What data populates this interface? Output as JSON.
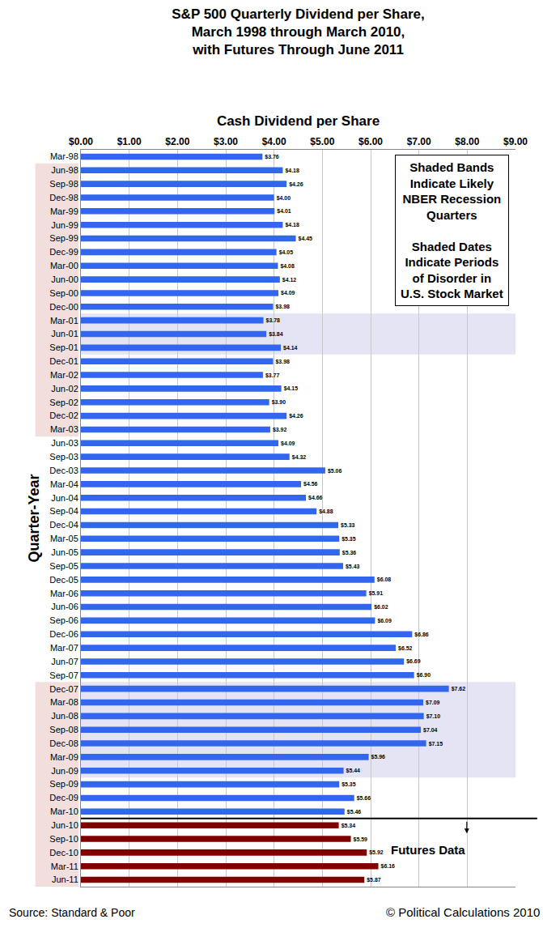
{
  "chart_data": {
    "type": "bar",
    "orientation": "horizontal",
    "title": "S&P 500 Quarterly Dividend per Share, March 1998 through March 2010, with Futures Through June 2011",
    "xlabel": "Cash Dividend per Share",
    "ylabel": "Quarter-Year",
    "categories": [
      "Mar-98",
      "Jun-98",
      "Sep-98",
      "Dec-98",
      "Mar-99",
      "Jun-99",
      "Sep-99",
      "Dec-99",
      "Mar-00",
      "Jun-00",
      "Sep-00",
      "Dec-00",
      "Mar-01",
      "Jun-01",
      "Sep-01",
      "Dec-01",
      "Mar-02",
      "Jun-02",
      "Sep-02",
      "Dec-02",
      "Mar-03",
      "Jun-03",
      "Sep-03",
      "Dec-03",
      "Mar-04",
      "Jun-04",
      "Sep-04",
      "Dec-04",
      "Mar-05",
      "Jun-05",
      "Sep-05",
      "Dec-05",
      "Mar-06",
      "Jun-06",
      "Sep-06",
      "Dec-06",
      "Mar-07",
      "Jun-07",
      "Sep-07",
      "Dec-07",
      "Mar-08",
      "Jun-08",
      "Sep-08",
      "Dec-08",
      "Mar-09",
      "Jun-09",
      "Sep-09",
      "Dec-09",
      "Mar-10",
      "Jun-10",
      "Sep-10",
      "Dec-10",
      "Mar-11",
      "Jun-11"
    ],
    "values": [
      3.76,
      4.18,
      4.26,
      4.0,
      4.01,
      4.18,
      4.45,
      4.05,
      4.08,
      4.12,
      4.09,
      3.98,
      3.78,
      3.84,
      4.14,
      3.98,
      3.77,
      4.15,
      3.9,
      4.26,
      3.92,
      4.09,
      4.32,
      5.06,
      4.56,
      4.66,
      4.88,
      5.33,
      5.35,
      5.36,
      5.43,
      6.08,
      5.91,
      6.02,
      6.09,
      6.86,
      6.52,
      6.69,
      6.9,
      7.62,
      7.09,
      7.1,
      7.04,
      7.15,
      5.96,
      5.44,
      5.35,
      5.66,
      5.46,
      5.34,
      5.59,
      5.92,
      6.16,
      5.87
    ],
    "value_labels": [
      "$3.76",
      "$4.18",
      "$4.26",
      "$4.00",
      "$4.01",
      "$4.18",
      "$4.45",
      "$4.05",
      "$4.08",
      "$4.12",
      "$4.09",
      "$3.98",
      "$3.78",
      "$3.84",
      "$4.14",
      "$3.98",
      "$3.77",
      "$4.15",
      "$3.90",
      "$4.26",
      "$3.92",
      "$4.09",
      "$4.32",
      "$5.06",
      "$4.56",
      "$4.66",
      "$4.88",
      "$5.33",
      "$5.35",
      "$5.36",
      "$5.43",
      "$6.08",
      "$5.91",
      "$6.02",
      "$6.09",
      "$6.86",
      "$6.52",
      "$6.69",
      "$6.90",
      "$7.62",
      "$7.09",
      "$7.10",
      "$7.04",
      "$7.15",
      "$5.96",
      "$5.44",
      "$5.35",
      "$5.66",
      "$5.46",
      "$5.34",
      "$5.59",
      "$5.92",
      "$6.16",
      "$5.87"
    ],
    "colors": [
      "#3366ee",
      "#3366ee",
      "#3366ee",
      "#3366ee",
      "#3366ee",
      "#3366ee",
      "#3366ee",
      "#3366ee",
      "#3366ee",
      "#3366ee",
      "#3366ee",
      "#3366ee",
      "#3366ee",
      "#3366ee",
      "#3366ee",
      "#3366ee",
      "#3366ee",
      "#3366ee",
      "#3366ee",
      "#3366ee",
      "#3366ee",
      "#3366ee",
      "#3366ee",
      "#3366ee",
      "#3366ee",
      "#3366ee",
      "#3366ee",
      "#3366ee",
      "#3366ee",
      "#3366ee",
      "#3366ee",
      "#3366ee",
      "#3366ee",
      "#3366ee",
      "#3366ee",
      "#3366ee",
      "#3366ee",
      "#3366ee",
      "#3366ee",
      "#3366ee",
      "#3366ee",
      "#3366ee",
      "#3366ee",
      "#3366ee",
      "#3366ee",
      "#3366ee",
      "#3366ee",
      "#3366ee",
      "#3366ee",
      "#800000",
      "#800000",
      "#800000",
      "#800000",
      "#800000"
    ],
    "data_labels": true,
    "xlim": [
      0,
      9
    ],
    "xticks": [
      {
        "value": 0,
        "label": "$0.00"
      },
      {
        "value": 1,
        "label": "$1.00"
      },
      {
        "value": 2,
        "label": "$2.00"
      },
      {
        "value": 3,
        "label": "$3.00"
      },
      {
        "value": 4,
        "label": "$4.00"
      },
      {
        "value": 5,
        "label": "$5.00"
      },
      {
        "value": 6,
        "label": "$6.00"
      },
      {
        "value": 7,
        "label": "$7.00"
      },
      {
        "value": 8,
        "label": "$8.00"
      },
      {
        "value": 9,
        "label": "$9.00"
      }
    ],
    "grid": true,
    "shaded_bands": [
      {
        "from": "Mar-01",
        "to": "Sep-01"
      },
      {
        "from": "Dec-07",
        "to": "Jun-09"
      }
    ],
    "shaded_dates": [
      {
        "from": "Jun-98",
        "to": "Mar-03"
      },
      {
        "from": "Dec-07",
        "to": "Jun-11"
      }
    ],
    "note_box": [
      [
        "Shaded Bands",
        "Indicate Likely",
        "NBER Recession",
        "Quarters"
      ],
      [
        "Shaded Dates",
        "Indicate Periods",
        "of Disorder in",
        "U.S. Stock Market"
      ]
    ],
    "futures_label": "Futures Data",
    "futures_from": "Jun-10",
    "source": "Source: Standard & Poor",
    "copyright": "© Political Calculations 2010"
  }
}
